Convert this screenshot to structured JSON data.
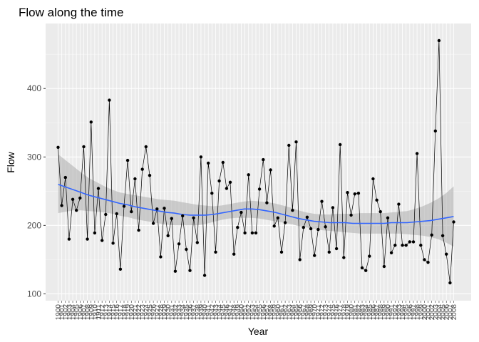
{
  "chart_data": {
    "type": "line",
    "title": "Flow along the time",
    "xlabel": "Year",
    "ylabel": "Flow",
    "ylim": [
      90,
      495
    ],
    "y_ticks": [
      100,
      200,
      300,
      400
    ],
    "x_first_label": "1900",
    "x_last_label": "2018",
    "x_tick_labels": [
      "1900",
      "1901",
      "1902",
      "1903",
      "1904",
      "1905",
      "1906",
      "1907",
      "1908",
      "1909",
      "1910",
      "1911",
      "1912",
      "1913",
      "1914",
      "1915",
      "1916",
      "1917",
      "1918",
      "1919",
      "1920",
      "1921",
      "1922",
      "1923",
      "1924",
      "1925",
      "1926",
      "1927",
      "1928",
      "1929",
      "1930",
      "1931",
      "1932",
      "1933",
      "1934",
      "1935",
      "1936",
      "1937",
      "1938",
      "1939",
      "1940",
      "1941",
      "1942",
      "1943",
      "1944",
      "1945",
      "1946",
      "1947",
      "1948",
      "1949",
      "1950",
      "1951",
      "1952",
      "1953",
      "1954",
      "1955",
      "1956",
      "1957",
      "1958",
      "1959",
      "1960",
      "1961",
      "1962",
      "1963",
      "1964",
      "1965",
      "1966",
      "1967",
      "1968",
      "1969",
      "1970",
      "1971",
      "1972",
      "1973",
      "1974",
      "1975",
      "1976",
      "1977",
      "1978",
      "1979",
      "1980",
      "1981",
      "1982",
      "1983",
      "1984",
      "1985",
      "1986",
      "1987",
      "1988",
      "1989",
      "1990",
      "1991",
      "1992",
      "1993",
      "1994",
      "1995",
      "1996",
      "1997",
      "1998",
      "1999",
      "2000",
      "2001",
      "2002",
      "2003",
      "2004",
      "2005",
      "2006",
      "2007",
      "2008",
      "2009",
      "2010",
      "2011",
      "2012",
      "2013",
      "2014",
      "2015",
      "2016",
      "2017",
      "2018"
    ],
    "grid": true,
    "series": [
      {
        "type": "line+points",
        "color": "#000000",
        "values": [
          314,
          229,
          270,
          180,
          238,
          222,
          240,
          315,
          180,
          351,
          189,
          254,
          178,
          216,
          383,
          174,
          217,
          136,
          228,
          295,
          220,
          268,
          193,
          282,
          315,
          273,
          203,
          224,
          154,
          225,
          185,
          210,
          133,
          173,
          214,
          165,
          134,
          211,
          175,
          300,
          127,
          291,
          247,
          161,
          265,
          292,
          254,
          263,
          158,
          197,
          219,
          189,
          274,
          189,
          189,
          253,
          296,
          233,
          281,
          199,
          211,
          161,
          204,
          317,
          222,
          322,
          150,
          197,
          212,
          195,
          156,
          194,
          235,
          198,
          161,
          226,
          166,
          318,
          153,
          248,
          215,
          246,
          247,
          138,
          134,
          155,
          268,
          237,
          220,
          140,
          211,
          160,
          171,
          231,
          171,
          171,
          176,
          176,
          305,
          171,
          150,
          146,
          186,
          338,
          470,
          185,
          158,
          116,
          205
        ]
      },
      {
        "type": "smooth",
        "color": "#3366ff",
        "band_color": "#b3b3b3",
        "values": [
          260,
          256,
          252,
          248,
          244,
          241,
          238,
          235,
          232,
          230,
          227,
          225,
          223,
          221,
          219,
          218,
          216,
          215,
          215,
          215,
          216,
          218,
          220,
          222,
          224,
          224,
          223,
          221,
          219,
          216,
          213,
          210,
          208,
          206,
          205,
          204,
          204,
          204,
          203,
          203,
          203,
          203,
          203,
          204,
          204,
          204,
          205,
          206,
          207,
          209,
          211,
          213
        ],
        "lower": [
          218,
          220,
          222,
          222,
          221,
          220,
          219,
          217,
          214,
          212,
          209,
          207,
          205,
          203,
          201,
          200,
          200,
          200,
          200,
          202,
          205,
          208,
          210,
          211,
          211,
          211,
          210,
          208,
          206,
          204,
          202,
          199,
          197,
          195,
          193,
          192,
          191,
          190,
          189,
          188,
          188,
          188,
          188,
          188,
          188,
          187,
          186,
          185,
          183,
          180,
          175,
          169
        ],
        "upper": [
          304,
          295,
          286,
          277,
          269,
          263,
          257,
          252,
          248,
          246,
          244,
          242,
          240,
          238,
          237,
          236,
          234,
          232,
          230,
          229,
          228,
          229,
          231,
          233,
          235,
          236,
          235,
          234,
          232,
          229,
          226,
          222,
          219,
          217,
          216,
          216,
          217,
          217,
          217,
          218,
          218,
          218,
          218,
          219,
          220,
          221,
          224,
          228,
          233,
          239,
          247,
          257
        ]
      }
    ]
  }
}
